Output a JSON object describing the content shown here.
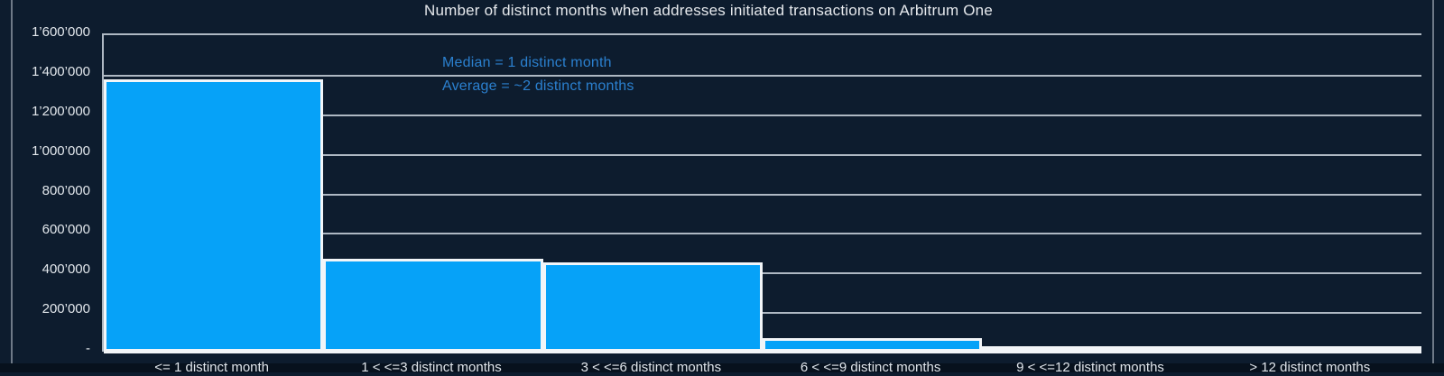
{
  "chart_data": {
    "type": "bar",
    "title": "Number of distinct months when addresses initiated transactions on Arbitrum One",
    "categories": [
      "<= 1 distinct month",
      "1 < <=3 distinct months",
      "3 < <=6 distinct months",
      "6 < <=9 distinct months",
      "9 < <=12 distinct months",
      "> 12 distinct months"
    ],
    "values": [
      1375000,
      470000,
      450000,
      70000,
      20000,
      2000
    ],
    "xlabel": "",
    "ylabel": "",
    "ylim": [
      0,
      1600000
    ],
    "ytick_step": 200000,
    "ytick_labels": [
      "1’600’000",
      "1’400’000",
      "1’200’000",
      "1’000’000",
      "800’000",
      "600’000",
      "400’000",
      "200’000",
      "-"
    ],
    "grid": true,
    "legend": "none",
    "annotations": {
      "median": "Median = 1 distinct month",
      "average": "Average = ~2 distinct months"
    },
    "colors": {
      "background": "#0d1c2e",
      "bar_fill": "#06a2f8",
      "bar_border": "#f2f5f8",
      "gridline": "#aeb8c3",
      "annotation_text": "#2b80cf",
      "axis_text": "#e2e7ec",
      "title_text": "#e6e9ed"
    }
  }
}
